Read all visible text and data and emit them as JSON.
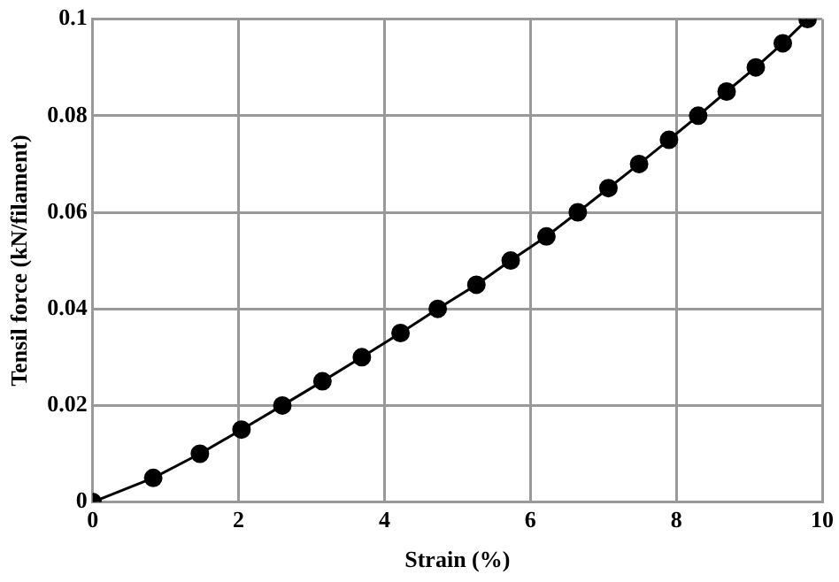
{
  "chart_data": {
    "type": "line",
    "xlabel": "Strain (%)",
    "ylabel": "Tensil force (kN/filament)",
    "x": [
      0,
      0.83,
      1.47,
      2.04,
      2.6,
      3.15,
      3.69,
      4.22,
      4.73,
      5.26,
      5.73,
      6.22,
      6.65,
      7.07,
      7.49,
      7.9,
      8.3,
      8.69,
      9.09,
      9.46,
      9.8
    ],
    "series": [
      {
        "color": "#000000",
        "values": [
          0,
          0.005,
          0.01,
          0.015,
          0.02,
          0.025,
          0.03,
          0.035,
          0.04,
          0.045,
          0.05,
          0.055,
          0.06,
          0.065,
          0.07,
          0.075,
          0.08,
          0.085,
          0.09,
          0.095,
          0.1
        ]
      }
    ],
    "xlim": [
      0,
      10
    ],
    "xticks": [
      0,
      2,
      4,
      6,
      8,
      10
    ],
    "ylim": [
      0,
      0.1
    ],
    "yticks": [
      0,
      0.02,
      0.04,
      0.06,
      0.08,
      0.1
    ],
    "grid": true,
    "legend": false,
    "marker": "circle",
    "line_style": "solid"
  }
}
